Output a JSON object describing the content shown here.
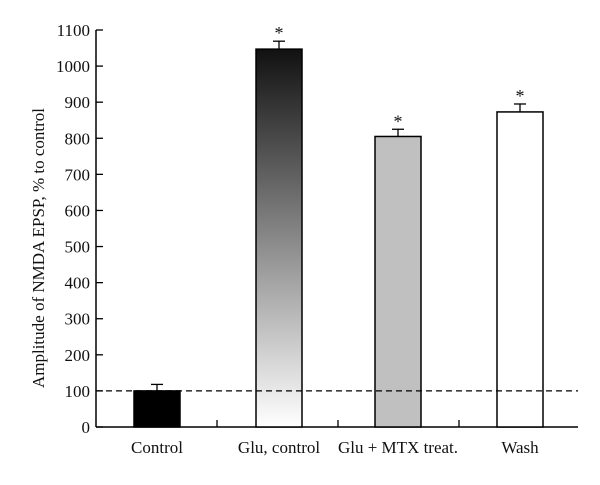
{
  "chart_data": {
    "type": "bar",
    "title": "",
    "xlabel": "",
    "ylabel": "Amplitude of NMDA EPSP, % to control",
    "ylim": [
      0,
      1100
    ],
    "yticks": [
      0,
      100,
      200,
      300,
      400,
      500,
      600,
      700,
      800,
      900,
      1000,
      1100
    ],
    "categories": [
      "Control",
      "Glu, control",
      "Glu + MTX treat.",
      "Wash"
    ],
    "values": [
      100,
      1047,
      805,
      873
    ],
    "errors": [
      18,
      22,
      20,
      22
    ],
    "significance": [
      "",
      "*",
      "*",
      "*"
    ],
    "bar_fills": [
      "solid-black",
      "gradient-black-to-white",
      "solid-gray",
      "white"
    ],
    "colors": {
      "black": "#000000",
      "gray": "#c0c0c0",
      "white": "#ffffff",
      "gradient_top": "#111111",
      "gradient_bottom": "#ffffff"
    },
    "reference_line": {
      "y": 100,
      "style": "dashed"
    },
    "grid": false,
    "legend": "none"
  }
}
